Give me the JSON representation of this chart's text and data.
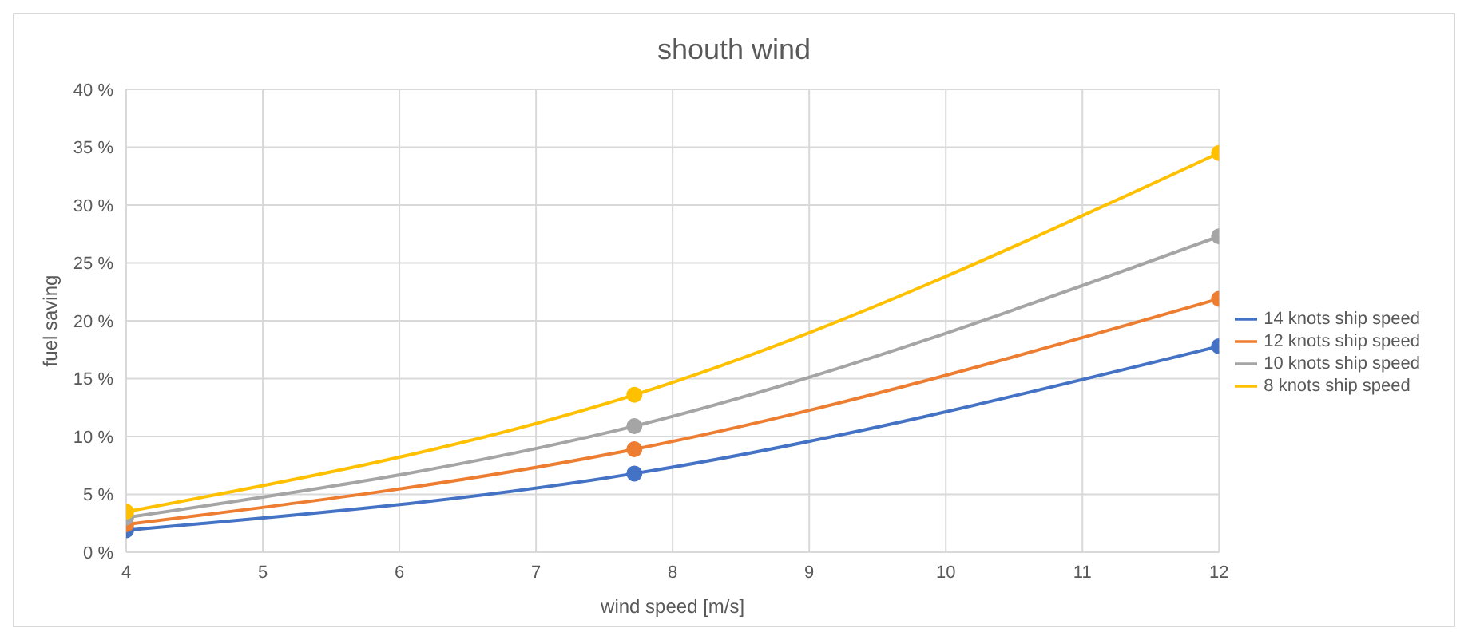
{
  "chart_data": {
    "type": "line",
    "title": "shouth wind",
    "xlabel": "wind speed [m/s]",
    "ylabel": "fuel saving",
    "x": [
      4,
      7.72,
      12
    ],
    "series": [
      {
        "name": "14 knots ship speed",
        "color": "#4472c4",
        "values": [
          1.9,
          6.8,
          17.8
        ]
      },
      {
        "name": "12 knots ship speed",
        "color": "#ed7d31",
        "values": [
          2.4,
          8.9,
          21.9
        ]
      },
      {
        "name": "10 knots ship speed",
        "color": "#a5a5a5",
        "values": [
          3.0,
          10.9,
          27.3
        ]
      },
      {
        "name": "8 knots ship speed",
        "color": "#ffc000",
        "values": [
          3.5,
          13.6,
          34.5
        ]
      }
    ],
    "xlim": [
      4,
      12
    ],
    "xticks": [
      4,
      5,
      6,
      7,
      8,
      9,
      10,
      11,
      12
    ],
    "ylim": [
      0,
      40
    ],
    "yticks": [
      {
        "value": 0,
        "label": "0 %"
      },
      {
        "value": 5,
        "label": "5 %"
      },
      {
        "value": 10,
        "label": "10 %"
      },
      {
        "value": 15,
        "label": "15 %"
      },
      {
        "value": 20,
        "label": "20 %"
      },
      {
        "value": 25,
        "label": "25 %"
      },
      {
        "value": 30,
        "label": "30 %"
      },
      {
        "value": 35,
        "label": "35 %"
      },
      {
        "value": 40,
        "label": "40 %"
      }
    ],
    "grid": true,
    "legend": "right",
    "marker": "circle",
    "line_style": "solid"
  }
}
